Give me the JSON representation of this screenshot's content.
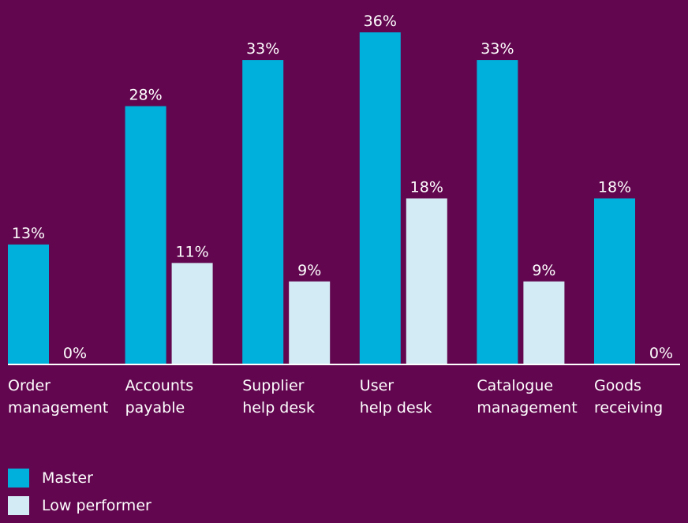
{
  "chart_data": {
    "type": "bar",
    "title": "",
    "xlabel": "",
    "ylabel": "",
    "ylim": [
      0,
      36
    ],
    "grid": false,
    "legend_position": "bottom-left",
    "value_suffix": "%",
    "categories": [
      [
        "Order",
        "management"
      ],
      [
        "Accounts",
        "payable"
      ],
      [
        "Supplier",
        "help desk"
      ],
      [
        "User",
        "help desk"
      ],
      [
        "Catalogue",
        "management"
      ],
      [
        "Goods",
        "receiving"
      ]
    ],
    "series": [
      {
        "name": "Master",
        "color": "#00b0dc",
        "values": [
          13,
          28,
          33,
          36,
          33,
          18
        ]
      },
      {
        "name": "Low performer",
        "color": "#d3ebf4",
        "values": [
          0,
          11,
          9,
          18,
          9,
          0
        ]
      }
    ],
    "colors": {
      "background": "#62074f",
      "axis": "#ffffff",
      "text": "#ffffff"
    }
  },
  "legend": {
    "items": [
      {
        "label": "Master",
        "color": "#00b0dc"
      },
      {
        "label": "Low performer",
        "color": "#d3ebf4"
      }
    ]
  }
}
